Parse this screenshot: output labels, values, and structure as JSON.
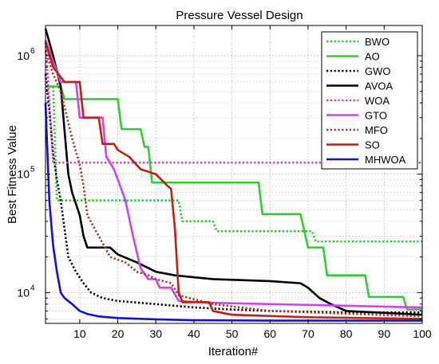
{
  "chart_data": {
    "type": "line",
    "title": "Pressure Vessel Design",
    "xlabel": "Iteration#",
    "ylabel": "Best Fitness Value",
    "xlim": [
      1,
      100
    ],
    "ylim": [
      5500,
      1800000
    ],
    "yscale": "log",
    "grid": true,
    "legend_position": "top-right",
    "x_ticks": [
      10,
      20,
      30,
      40,
      50,
      60,
      70,
      80,
      90,
      100
    ],
    "y_ticks": [
      {
        "value": 10000,
        "base": "10",
        "exp": "4"
      },
      {
        "value": 100000,
        "base": "10",
        "exp": "5"
      },
      {
        "value": 1000000,
        "base": "10",
        "exp": "6"
      }
    ],
    "series": [
      {
        "name": "BWO",
        "color": "#22cc22",
        "dash": "dot",
        "points": [
          [
            1,
            550000
          ],
          [
            3,
            550000
          ],
          [
            4,
            60000
          ],
          [
            36,
            60000
          ],
          [
            37,
            40000
          ],
          [
            45,
            40000
          ],
          [
            46,
            33000
          ],
          [
            71,
            33000
          ],
          [
            72,
            27000
          ],
          [
            100,
            27000
          ]
        ]
      },
      {
        "name": "AO",
        "color": "#33cc33",
        "dash": "solid",
        "points": [
          [
            1,
            550000
          ],
          [
            5,
            550000
          ],
          [
            6,
            430000
          ],
          [
            20,
            430000
          ],
          [
            21,
            240000
          ],
          [
            26,
            240000
          ],
          [
            27,
            170000
          ],
          [
            28,
            170000
          ],
          [
            29,
            85000
          ],
          [
            57,
            85000
          ],
          [
            58,
            46000
          ],
          [
            68,
            46000
          ],
          [
            70,
            24000
          ],
          [
            74,
            24000
          ],
          [
            75,
            14000
          ],
          [
            85,
            14000
          ],
          [
            86,
            9200
          ],
          [
            95,
            9200
          ],
          [
            96,
            7200
          ],
          [
            100,
            7200
          ]
        ]
      },
      {
        "name": "GWO",
        "color": "#000000",
        "dash": "dot",
        "points": [
          [
            1,
            700000
          ],
          [
            2,
            350000
          ],
          [
            3,
            150000
          ],
          [
            4,
            90000
          ],
          [
            5,
            60000
          ],
          [
            7,
            20000
          ],
          [
            9,
            15000
          ],
          [
            11,
            12000
          ],
          [
            13,
            10000
          ],
          [
            16,
            9000
          ],
          [
            20,
            8500
          ],
          [
            30,
            8000
          ],
          [
            40,
            7500
          ],
          [
            50,
            7200
          ],
          [
            60,
            7000
          ],
          [
            70,
            6900
          ],
          [
            80,
            6800
          ],
          [
            100,
            6800
          ]
        ]
      },
      {
        "name": "AVOA",
        "color": "#000000",
        "dash": "solid",
        "points": [
          [
            1,
            1700000
          ],
          [
            3,
            1000000
          ],
          [
            5,
            550000
          ],
          [
            7,
            100000
          ],
          [
            8,
            70000
          ],
          [
            10,
            45000
          ],
          [
            11,
            30000
          ],
          [
            12,
            24000
          ],
          [
            18,
            24000
          ],
          [
            20,
            21000
          ],
          [
            25,
            18000
          ],
          [
            30,
            15000
          ],
          [
            35,
            14000
          ],
          [
            45,
            13000
          ],
          [
            60,
            12500
          ],
          [
            68,
            12000
          ],
          [
            70,
            11000
          ],
          [
            73,
            9000
          ],
          [
            76,
            8000
          ],
          [
            80,
            7000
          ],
          [
            100,
            6500
          ]
        ]
      },
      {
        "name": "WOA",
        "color": "#e030e0",
        "dash": "dot",
        "points": [
          [
            1,
            1300000
          ],
          [
            3,
            125000
          ],
          [
            100,
            125000
          ]
        ]
      },
      {
        "name": "GTO",
        "color": "#cc44ee",
        "dash": "solid",
        "points": [
          [
            1,
            1350000
          ],
          [
            3,
            900000
          ],
          [
            5,
            600000
          ],
          [
            9,
            600000
          ],
          [
            10,
            300000
          ],
          [
            16,
            300000
          ],
          [
            17,
            140000
          ],
          [
            19,
            110000
          ],
          [
            20,
            90000
          ],
          [
            22,
            60000
          ],
          [
            24,
            30000
          ],
          [
            26,
            16000
          ],
          [
            28,
            13000
          ],
          [
            30,
            13000
          ],
          [
            31,
            11000
          ],
          [
            34,
            11000
          ],
          [
            36,
            8500
          ],
          [
            45,
            8200
          ],
          [
            100,
            7500
          ]
        ]
      },
      {
        "name": "MFO",
        "color": "#aa3322",
        "dash": "dot",
        "points": [
          [
            1,
            1100000
          ],
          [
            3,
            700000
          ],
          [
            5,
            500000
          ],
          [
            8,
            200000
          ],
          [
            10,
            120000
          ],
          [
            11,
            80000
          ],
          [
            12,
            45000
          ],
          [
            15,
            30000
          ],
          [
            18,
            20000
          ],
          [
            22,
            18000
          ],
          [
            25,
            15000
          ],
          [
            28,
            14000
          ],
          [
            30,
            13000
          ],
          [
            34,
            12000
          ],
          [
            36,
            9500
          ],
          [
            45,
            8000
          ],
          [
            60,
            7000
          ],
          [
            100,
            6300
          ]
        ]
      },
      {
        "name": "SO",
        "color": "#bb2211",
        "dash": "solid",
        "points": [
          [
            1,
            1300000
          ],
          [
            3,
            800000
          ],
          [
            6,
            600000
          ],
          [
            10,
            600000
          ],
          [
            11,
            300000
          ],
          [
            15,
            300000
          ],
          [
            16,
            180000
          ],
          [
            19,
            180000
          ],
          [
            20,
            160000
          ],
          [
            23,
            140000
          ],
          [
            26,
            110000
          ],
          [
            30,
            100000
          ],
          [
            33,
            80000
          ],
          [
            34,
            75000
          ],
          [
            35,
            35000
          ],
          [
            36,
            10000
          ],
          [
            37,
            8300
          ],
          [
            44,
            8300
          ],
          [
            45,
            7000
          ],
          [
            50,
            6500
          ],
          [
            70,
            6200
          ],
          [
            100,
            6000
          ]
        ]
      },
      {
        "name": "MHWOA",
        "color": "#1111dd",
        "dash": "solid",
        "points": [
          [
            1,
            400000
          ],
          [
            2,
            60000
          ],
          [
            3,
            25000
          ],
          [
            4,
            15000
          ],
          [
            5,
            10000
          ],
          [
            6,
            9000
          ],
          [
            8,
            8000
          ],
          [
            10,
            7000
          ],
          [
            12,
            6600
          ],
          [
            15,
            6300
          ],
          [
            20,
            6100
          ],
          [
            30,
            5950
          ],
          [
            40,
            5850
          ],
          [
            60,
            5800
          ],
          [
            100,
            5800
          ]
        ]
      }
    ]
  }
}
